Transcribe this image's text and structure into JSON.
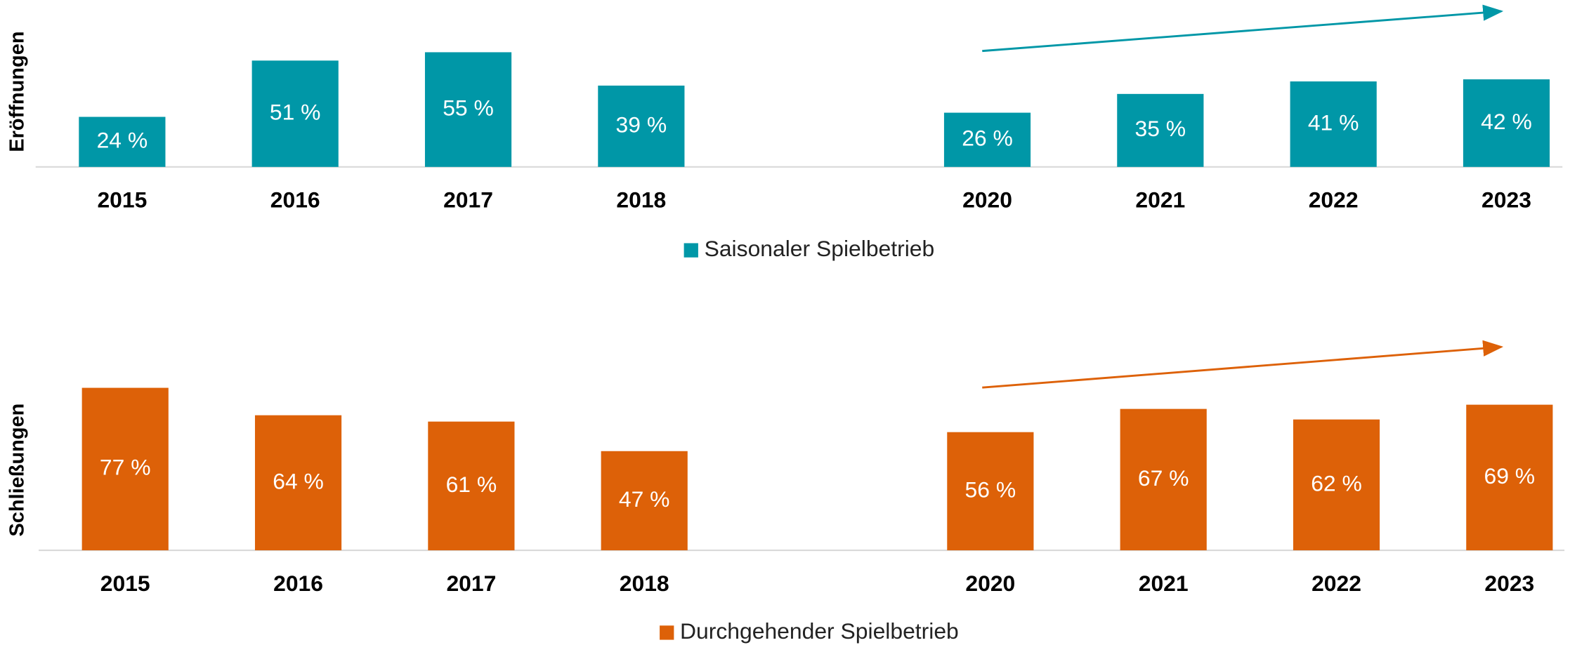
{
  "chart_data": [
    {
      "type": "bar",
      "ylabel": "Eröffnungen",
      "categories": [
        "2015",
        "2016",
        "2017",
        "2018",
        null,
        "2020",
        "2021",
        "2022",
        "2023"
      ],
      "series": [
        {
          "name": "Saisonaler Spielbetrieb",
          "color": "#0097a7",
          "values": [
            24,
            51,
            55,
            39,
            null,
            26,
            35,
            41,
            42
          ],
          "value_labels": [
            "24 %",
            "51 %",
            "55 %",
            "39 %",
            null,
            "26 %",
            "35 %",
            "41 %",
            "42 %"
          ]
        }
      ],
      "ylim": [
        0,
        80
      ]
    },
    {
      "type": "bar",
      "ylabel": "Schließungen",
      "categories": [
        "2015",
        "2016",
        "2017",
        "2018",
        null,
        "2020",
        "2021",
        "2022",
        "2023"
      ],
      "series": [
        {
          "name": "Durchgehender Spielbetrieb",
          "color": "#dd6108",
          "values": [
            77,
            64,
            61,
            47,
            null,
            56,
            67,
            62,
            69
          ],
          "value_labels": [
            "77 %",
            "64 %",
            "61 %",
            "47 %",
            null,
            "56 %",
            "67 %",
            "62 %",
            "69 %"
          ]
        }
      ],
      "ylim": [
        0,
        80
      ]
    }
  ]
}
